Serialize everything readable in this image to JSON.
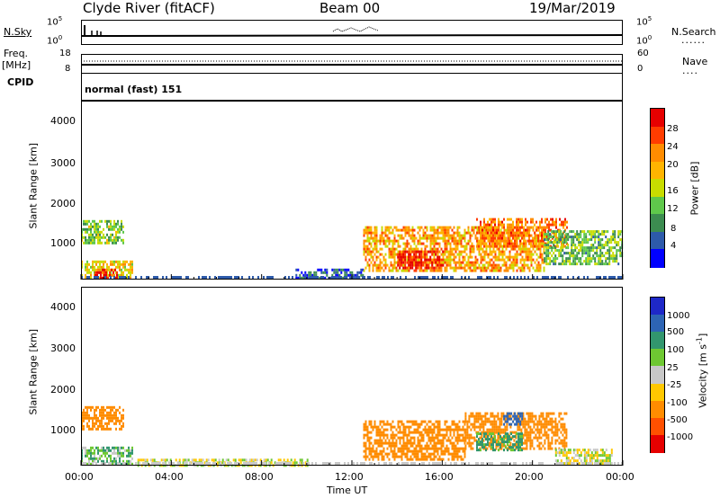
{
  "header": {
    "station": "Clyde River (fitACF)",
    "beam": "Beam 00",
    "date": "19/Mar/2019"
  },
  "nsky_panel": {
    "left_label": "N.Sky",
    "left_ticks": [
      "10^5",
      "10^0"
    ],
    "right_label": "N.Search",
    "right_ticks": [
      "10^5",
      "10^0"
    ]
  },
  "freq_panel": {
    "left_label_top": "Freq.",
    "left_label_bottom": "[MHz]",
    "left_ticks": [
      "18",
      "8"
    ],
    "right_label": "Nave",
    "right_ticks": [
      "60",
      "0"
    ]
  },
  "cpid_panel": {
    "label": "CPID",
    "value": "normal (fast) 151"
  },
  "x_axis": {
    "label": "Time UT",
    "ticks": [
      "00:00",
      "04:00",
      "08:00",
      "12:00",
      "16:00",
      "20:00",
      "00:00"
    ]
  },
  "y_axis": {
    "label": "Slant Range [km]",
    "ticks": [
      "4000",
      "3000",
      "2000",
      "1000"
    ]
  },
  "power_scale": {
    "label": "Power [dB]",
    "ticks": [
      "28",
      "24",
      "20",
      "16",
      "12",
      "8",
      "4"
    ],
    "colors": [
      "#e60000",
      "#ff3c00",
      "#ff8c00",
      "#ffb400",
      "#c8dc00",
      "#5fc84b",
      "#3c8c50",
      "#2d5aaa",
      "#0000ff"
    ]
  },
  "velocity_scale": {
    "label": "Velocity [m s^-1]",
    "ticks": [
      "1000",
      "500",
      "100",
      "25",
      "-25",
      "-100",
      "-500",
      "-1000"
    ],
    "colors": [
      "#1e28c8",
      "#2d64b4",
      "#32966e",
      "#6ec832",
      "#c8c8c8",
      "#ffc800",
      "#ff8c00",
      "#ff5000",
      "#e60000"
    ]
  },
  "chart_data": {
    "type": "heatmap",
    "title": "Clyde River (fitACF) Beam 00 19/Mar/2019",
    "xlabel": "Time UT",
    "ylabel": "Slant Range [km]",
    "x_ticks": [
      "00:00",
      "04:00",
      "08:00",
      "12:00",
      "16:00",
      "20:00",
      "00:00"
    ],
    "xlim_hours": [
      0,
      24
    ],
    "ylim_km": [
      180,
      4600
    ],
    "panels": [
      {
        "name": "Power [dB]",
        "scale": [
          4,
          28
        ],
        "regions": [
          {
            "t0": 0.0,
            "t1": 1.9,
            "r0": 1100,
            "r1": 1650,
            "value": 14
          },
          {
            "t0": 0.0,
            "t1": 2.3,
            "r0": 200,
            "r1": 650,
            "value": 18
          },
          {
            "t0": 0.6,
            "t1": 1.6,
            "r0": 200,
            "r1": 450,
            "value": 26
          },
          {
            "t0": 9.5,
            "t1": 12.5,
            "r0": 200,
            "r1": 450,
            "value": 8
          },
          {
            "t0": 12.5,
            "t1": 20.5,
            "r0": 400,
            "r1": 1500,
            "value": 20
          },
          {
            "t0": 14.0,
            "t1": 16.0,
            "r0": 500,
            "r1": 900,
            "value": 26
          },
          {
            "t0": 17.5,
            "t1": 21.5,
            "r0": 1000,
            "r1": 1700,
            "value": 22
          },
          {
            "t0": 20.5,
            "t1": 24.0,
            "r0": 600,
            "r1": 1400,
            "value": 13
          }
        ]
      },
      {
        "name": "Velocity [m s^-1]",
        "scale": [
          -1000,
          1000
        ],
        "regions": [
          {
            "t0": 0.0,
            "t1": 1.9,
            "r0": 1100,
            "r1": 1650,
            "value": -200
          },
          {
            "t0": 0.0,
            "t1": 2.3,
            "r0": 200,
            "r1": 650,
            "value": 80
          },
          {
            "t0": 2.5,
            "t1": 10.0,
            "r0": 200,
            "r1": 350,
            "value": 0
          },
          {
            "t0": 12.5,
            "t1": 17.0,
            "r0": 350,
            "r1": 1300,
            "value": -250
          },
          {
            "t0": 17.0,
            "t1": 21.5,
            "r0": 600,
            "r1": 1500,
            "value": -200
          },
          {
            "t0": 17.5,
            "t1": 19.5,
            "r0": 600,
            "r1": 1000,
            "value": 150
          },
          {
            "t0": 18.7,
            "t1": 19.5,
            "r0": 1200,
            "r1": 1500,
            "value": 800
          },
          {
            "t0": 21.0,
            "t1": 23.5,
            "r0": 250,
            "r1": 600,
            "value": 0
          }
        ]
      }
    ]
  }
}
